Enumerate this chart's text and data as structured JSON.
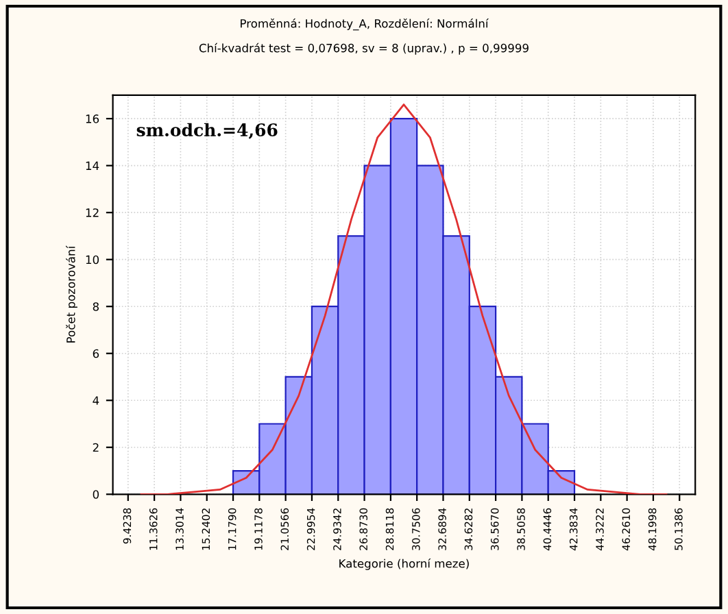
{
  "chart_data": {
    "type": "histogram",
    "title": "Proměnná: Hodnoty_A, Rozdělení: Normální",
    "subtitle": "Chí-kvadrát test = 0,07698, sv = 8 (uprav.) , p = 0,99999",
    "xlabel": "Kategorie (horní meze)",
    "ylabel": "Počet pozorování",
    "annotations": [
      "sm.odch.=4,66"
    ],
    "bins": [
      9.4238,
      11.3626,
      13.3014,
      15.2402,
      17.179,
      19.1178,
      21.0566,
      22.9954,
      24.9342,
      26.873,
      28.8118,
      30.7506,
      32.6894,
      34.6282,
      36.567,
      38.5058,
      40.4446,
      42.3834,
      44.3222,
      46.261,
      48.1998,
      50.1386
    ],
    "values": [
      0,
      0,
      0,
      0,
      1,
      3,
      5,
      8,
      11,
      14,
      16,
      14,
      11,
      8,
      5,
      3,
      1,
      0,
      0,
      0,
      0
    ],
    "color": "#a0a0ff",
    "series": [
      {
        "type": "line",
        "color": "#e03030",
        "x": [
          10.3932,
          12.332,
          14.2708,
          16.2096,
          18.1484,
          20.0872,
          22.026,
          23.9648,
          25.9036,
          27.8424,
          29.7812,
          31.72,
          33.6588,
          35.5976,
          37.5364,
          39.4752,
          41.414,
          43.3528,
          45.2916,
          47.2304,
          49.1692
        ],
        "values": [
          0,
          0,
          0.1,
          0.2,
          0.7,
          1.9,
          4.2,
          7.6,
          11.7,
          15.2,
          16.6,
          15.2,
          11.7,
          7.6,
          4.2,
          1.9,
          0.7,
          0.2,
          0.1,
          0,
          0
        ]
      }
    ],
    "xlim": [
      8.3,
      51.3
    ],
    "xticks": [
      {
        "value": 9.4238,
        "label": "9.4238"
      },
      {
        "value": 11.3626,
        "label": "11.3626"
      },
      {
        "value": 13.3014,
        "label": "13.3014"
      },
      {
        "value": 15.2402,
        "label": "15.2402"
      },
      {
        "value": 17.179,
        "label": "17.1790"
      },
      {
        "value": 19.1178,
        "label": "19.1178"
      },
      {
        "value": 21.0566,
        "label": "21.0566"
      },
      {
        "value": 22.9954,
        "label": "22.9954"
      },
      {
        "value": 24.9342,
        "label": "24.9342"
      },
      {
        "value": 26.873,
        "label": "26.8730"
      },
      {
        "value": 28.8118,
        "label": "28.8118"
      },
      {
        "value": 30.7506,
        "label": "30.7506"
      },
      {
        "value": 32.6894,
        "label": "32.6894"
      },
      {
        "value": 34.6282,
        "label": "34.6282"
      },
      {
        "value": 36.567,
        "label": "36.5670"
      },
      {
        "value": 38.5058,
        "label": "38.5058"
      },
      {
        "value": 40.4446,
        "label": "40.4446"
      },
      {
        "value": 42.3834,
        "label": "42.3834"
      },
      {
        "value": 44.3222,
        "label": "44.3222"
      },
      {
        "value": 46.261,
        "label": "46.2610"
      },
      {
        "value": 48.1998,
        "label": "48.1998"
      },
      {
        "value": 50.1386,
        "label": "50.1386"
      }
    ],
    "ylim": [
      0,
      17
    ],
    "yticks": [
      0,
      2,
      4,
      6,
      8,
      10,
      12,
      14,
      16
    ],
    "grid": true
  }
}
